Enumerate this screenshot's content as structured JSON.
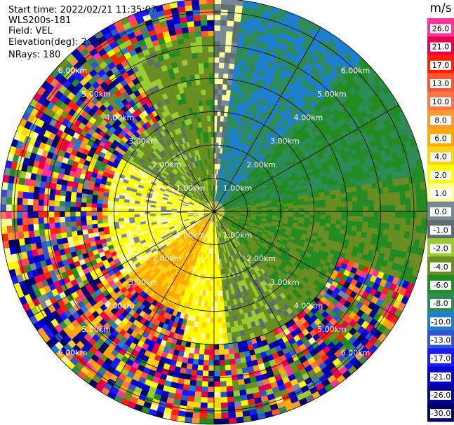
{
  "header": {
    "start_time": "Start time: 2022/02/21 11:35:07",
    "instrument": "WLS200s-181",
    "field": "Field: VEL",
    "elevation": "Elevation(deg): 2.00",
    "nrays": "NRays: 180"
  },
  "chart_data": {
    "type": "heatmap",
    "projection": "polar-ppi",
    "range_rings_km": [
      1,
      2,
      3,
      4,
      5,
      6
    ],
    "ring_labels": [
      "1.00km",
      "2.00km",
      "3.00km",
      "4.00km",
      "5.00km",
      "6.00km"
    ],
    "max_range_km": 6.4,
    "spokes_deg": [
      0,
      30,
      60,
      90,
      120,
      150,
      180,
      210,
      240,
      270,
      300,
      330
    ],
    "nrays": 180,
    "colorbar": {
      "unit": "m/s",
      "ticks": [
        "26.0",
        "21.0",
        "17.0",
        "13.0",
        "10.0",
        "8.0",
        "6.0",
        "4.0",
        "2.0",
        "1.0",
        "0.0",
        "-1.0",
        "-2.0",
        "-4.0",
        "-6.0",
        "-8.0",
        "-10.0",
        "-13.0",
        "-17.0",
        "-21.0",
        "-26.0",
        "-30.0"
      ],
      "colors": [
        "#ff3399",
        "#e6004c",
        "#ff2200",
        "#ff5533",
        "#ff7744",
        "#ff9933",
        "#ffaa00",
        "#ffd21a",
        "#ffff00",
        "#ffff99",
        "#778899",
        "#5f6f6f",
        "#99cc33",
        "#6b8e23",
        "#228b22",
        "#2e8b57",
        "#1e7fd0",
        "#3355cc",
        "#1a1aff",
        "#0000cc",
        "#000099",
        "#000066"
      ]
    },
    "sectors": [
      {
        "az": [
          0,
          8
        ],
        "vel": 0.5
      },
      {
        "az": [
          8,
          45
        ],
        "vel": -8.0
      },
      {
        "az": [
          45,
          80
        ],
        "vel": -6.0
      },
      {
        "az": [
          80,
          140
        ],
        "vel": -4.0
      },
      {
        "az": [
          140,
          175
        ],
        "vel": -2.0
      },
      {
        "az": [
          175,
          200
        ],
        "vel": 3.0
      },
      {
        "az": [
          200,
          235
        ],
        "vel": 6.5
      },
      {
        "az": [
          235,
          300
        ],
        "vel": 2.0
      },
      {
        "az": [
          300,
          340
        ],
        "vel": -2.0
      },
      {
        "az": [
          340,
          360
        ],
        "vel": -3.0
      }
    ]
  }
}
